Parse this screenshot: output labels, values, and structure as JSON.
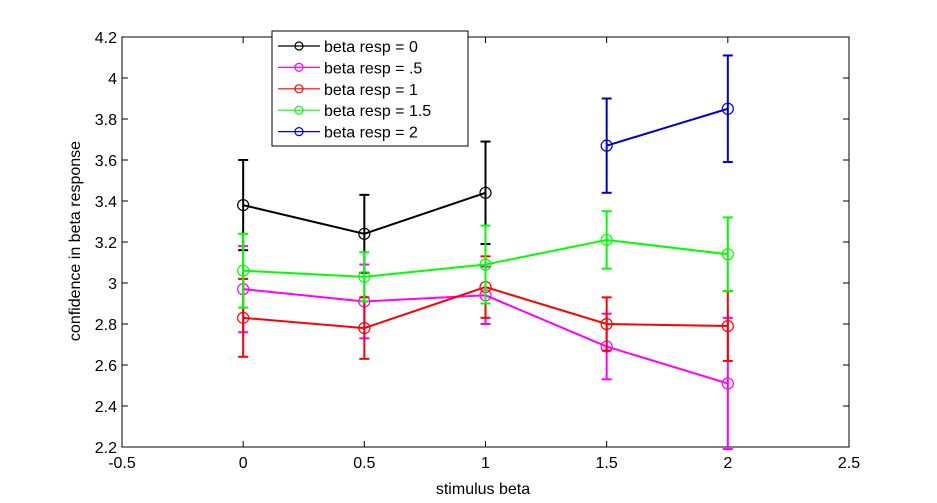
{
  "chart_data": {
    "type": "line",
    "title": "",
    "xlabel": "stimulus beta",
    "ylabel": "confidence in beta response",
    "xlim": [
      -0.5,
      2.5
    ],
    "ylim": [
      2.2,
      4.2
    ],
    "xticks": [
      -0.5,
      0,
      0.5,
      1,
      1.5,
      2,
      2.5
    ],
    "xtick_labels": [
      "-0.5",
      "0",
      "0.5",
      "1",
      "1.5",
      "2",
      "2.5"
    ],
    "yticks": [
      2.2,
      2.4,
      2.6,
      2.8,
      3,
      3.2,
      3.4,
      3.6,
      3.8,
      4,
      4.2
    ],
    "ytick_labels": [
      "2.2",
      "2.4",
      "2.6",
      "2.8",
      "3",
      "3.2",
      "3.4",
      "3.6",
      "3.8",
      "4",
      "4.2"
    ],
    "grid": false,
    "legend_position": "top-left-inside",
    "series": [
      {
        "name": "beta resp = 0",
        "color": "#000000",
        "x": [
          0,
          0.5,
          1
        ],
        "y": [
          3.38,
          3.24,
          3.44
        ],
        "err": [
          0.22,
          0.19,
          0.25
        ]
      },
      {
        "name": "beta resp = .5",
        "color": "#ff00ff",
        "x": [
          0,
          0.5,
          1,
          1.5,
          2
        ],
        "y": [
          2.97,
          2.91,
          2.94,
          2.69,
          2.51
        ],
        "err": [
          0.21,
          0.18,
          0.14,
          0.16,
          0.32
        ]
      },
      {
        "name": "beta resp = 1",
        "color": "#ff0000",
        "x": [
          0,
          0.5,
          1,
          1.5,
          2
        ],
        "y": [
          2.83,
          2.78,
          2.98,
          2.8,
          2.79
        ],
        "err": [
          0.19,
          0.15,
          0.15,
          0.13,
          0.17
        ]
      },
      {
        "name": "beta resp = 1.5",
        "color": "#00ff00",
        "x": [
          0,
          0.5,
          1,
          1.5,
          2
        ],
        "y": [
          3.06,
          3.03,
          3.09,
          3.21,
          3.14
        ],
        "err": [
          0.18,
          0.12,
          0.19,
          0.14,
          0.18
        ]
      },
      {
        "name": "beta resp = 2",
        "color": "#0000cc",
        "x": [
          1.5,
          2
        ],
        "y": [
          3.67,
          3.85
        ],
        "err": [
          0.23,
          0.26
        ]
      }
    ]
  }
}
